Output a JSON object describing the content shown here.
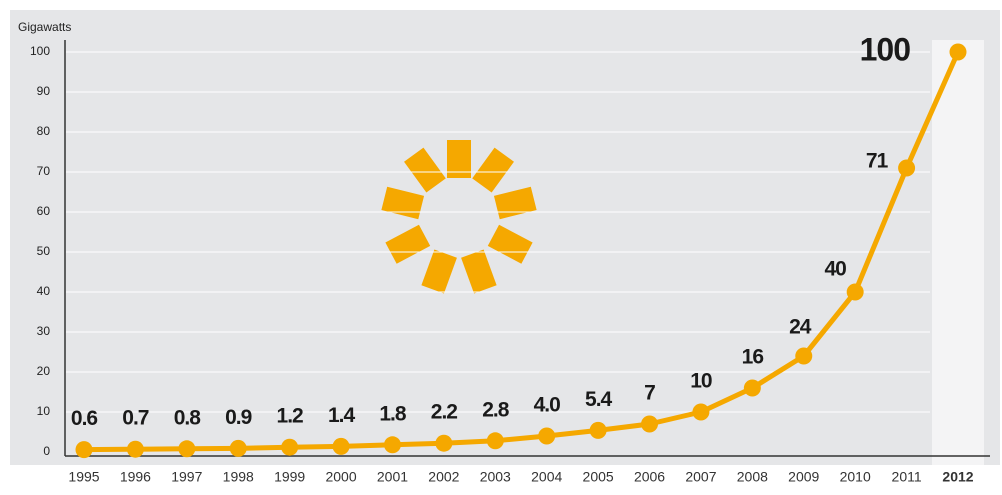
{
  "chart_data": {
    "type": "line",
    "y_label": "Gigawatts",
    "categories": [
      "1995",
      "1996",
      "1997",
      "1998",
      "1999",
      "2000",
      "2001",
      "2002",
      "2003",
      "2004",
      "2005",
      "2006",
      "2007",
      "2008",
      "2009",
      "2010",
      "2011",
      "2012"
    ],
    "values": [
      0.6,
      0.7,
      0.8,
      0.9,
      1.2,
      1.4,
      1.8,
      2.2,
      2.8,
      4.0,
      5.4,
      7,
      10,
      16,
      24,
      40,
      71,
      100
    ],
    "value_labels": [
      "0.6",
      "0.7",
      "0.8",
      "0.9",
      "1.2",
      "1.4",
      "1.8",
      "2.2",
      "2.8",
      "4.0",
      "5.4",
      "7",
      "10",
      "16",
      "24",
      "40",
      "71",
      "100"
    ],
    "color": "#f5a800",
    "ylim": [
      0,
      100
    ],
    "yticks": [
      0,
      10,
      20,
      30,
      40,
      50,
      60,
      70,
      80,
      90,
      100
    ],
    "grid": true
  }
}
